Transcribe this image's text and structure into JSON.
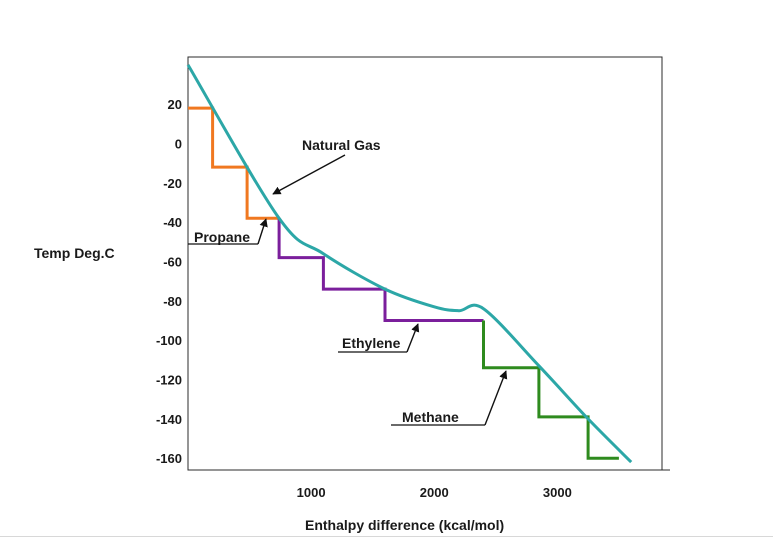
{
  "chart_data": {
    "type": "line",
    "title": "",
    "xlabel": "Enthalpy difference (kcal/mol)",
    "ylabel": "Temp Deg.C",
    "xlim": [
      0,
      3850
    ],
    "ylim": [
      -166,
      44
    ],
    "x_ticks": [
      1000,
      2000,
      3000
    ],
    "y_ticks": [
      20,
      0,
      -20,
      -40,
      -60,
      -80,
      -100,
      -120,
      -140,
      -160
    ],
    "grid": false,
    "legend": "none",
    "series": [
      {
        "color": "#2ca7a7",
        "style": "solid",
        "x": [
          0,
          740,
          1100,
          1600,
          2000,
          2200,
          2400,
          2850,
          3250,
          3600
        ],
        "y": [
          40,
          -38,
          -56,
          -74,
          -83,
          -85,
          -84,
          -113,
          -140,
          -162
        ]
      },
      {
        "color": "#f07820",
        "style": "step",
        "x": [
          0,
          200,
          200,
          480,
          480,
          740
        ],
        "y": [
          18,
          18,
          -12,
          -12,
          -38,
          -38
        ]
      },
      {
        "color": "#7b1f9c",
        "style": "step",
        "x": [
          740,
          740,
          1100,
          1100,
          1600,
          1600,
          2400
        ],
        "y": [
          -38,
          -58,
          -58,
          -74,
          -74,
          -90,
          -90
        ]
      },
      {
        "color": "#2e8b1e",
        "style": "step",
        "x": [
          2400,
          2400,
          2850,
          2850,
          3250,
          3250,
          3500
        ],
        "y": [
          -90,
          -114,
          -114,
          -139,
          -139,
          -160,
          -160
        ]
      }
    ],
    "annotations": [
      {
        "text": "Natural Gas",
        "series": 0,
        "target_x": 690,
        "target_y": -32
      },
      {
        "text": "Propane",
        "series": 1,
        "target_x": 640,
        "target_y": -40
      },
      {
        "text": "Ethylene",
        "series": 2,
        "target_x": 1800,
        "target_y": -88
      },
      {
        "text": "Methane",
        "series": 3,
        "target_x": 2500,
        "target_y": -118
      }
    ]
  }
}
